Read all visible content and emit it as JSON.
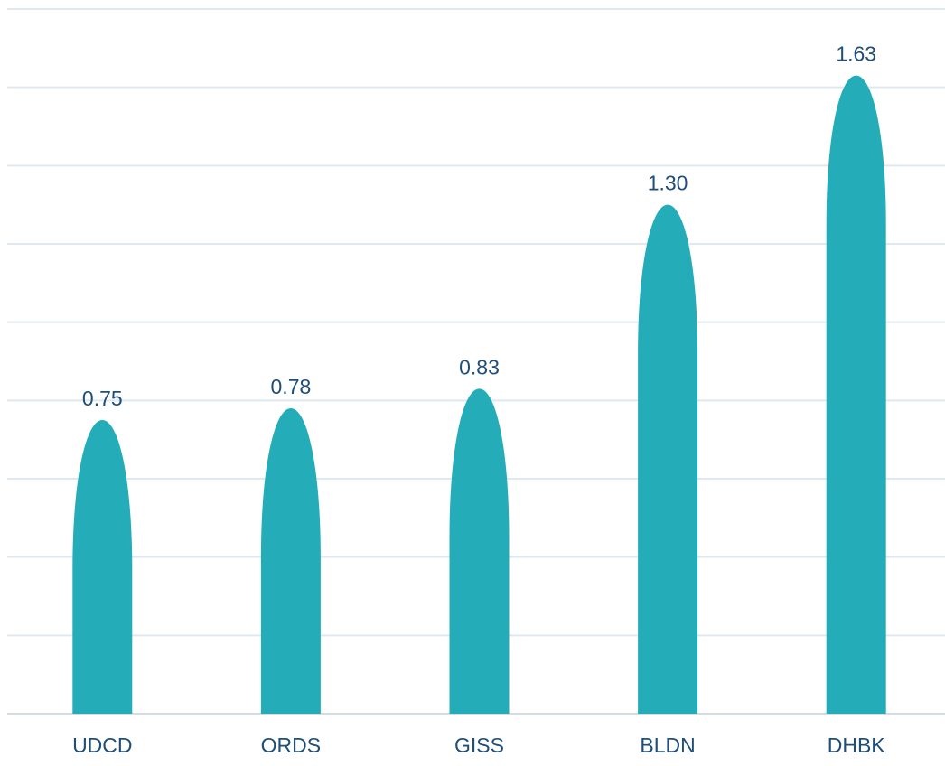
{
  "chart_data": {
    "type": "bar",
    "categories": [
      "UDCD",
      "ORDS",
      "GISS",
      "BLDN",
      "DHBK"
    ],
    "values": [
      0.75,
      0.78,
      0.83,
      1.3,
      1.63
    ],
    "data_labels": [
      "0.75",
      "0.78",
      "0.83",
      "1.30",
      "1.63"
    ],
    "title": "",
    "xlabel": "",
    "ylabel": "",
    "ylim": [
      0,
      1.8
    ],
    "grid": true,
    "gridline_count": 9,
    "legend": "none",
    "bar_shape": "bullet",
    "colors": {
      "bar": "#24adb8",
      "label_text": "#1f4e79",
      "gridline": "#dfe8ee",
      "axis": "#d4dde3"
    }
  }
}
